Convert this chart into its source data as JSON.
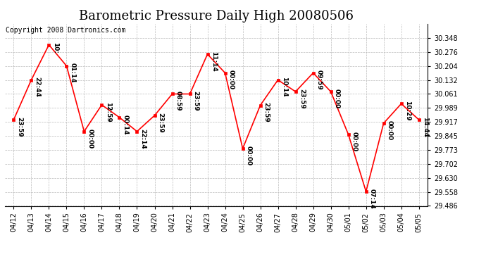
{
  "title": "Barometric Pressure Daily High 20080506",
  "copyright": "Copyright 2008 Dartronics.com",
  "x_labels": [
    "04/12",
    "04/13",
    "04/14",
    "04/15",
    "04/16",
    "04/17",
    "04/18",
    "04/19",
    "04/20",
    "04/21",
    "04/22",
    "04/23",
    "04/24",
    "04/25",
    "04/26",
    "04/27",
    "04/28",
    "04/29",
    "04/30",
    "05/01",
    "05/02",
    "05/03",
    "05/04",
    "05/05"
  ],
  "y_values": [
    29.928,
    30.132,
    30.312,
    30.204,
    29.868,
    30.004,
    29.94,
    29.868,
    29.95,
    30.06,
    30.06,
    30.264,
    30.168,
    29.78,
    30.002,
    30.132,
    30.072,
    30.168,
    30.072,
    29.852,
    29.56,
    29.91,
    30.01,
    29.928
  ],
  "point_labels": [
    "23:59",
    "22:44",
    "10:",
    "01:14",
    "00:00",
    "12:59",
    "00:14",
    "22:14",
    "23:59",
    "08:59",
    "23:59",
    "11:14",
    "00:00",
    "00:00",
    "23:59",
    "10:14",
    "23:59",
    "09:59",
    "00:00",
    "00:00",
    "07:14",
    "00:00",
    "10:29",
    "14:44"
  ],
  "ylim_min": 29.486,
  "ylim_max": 30.42,
  "yticks": [
    29.486,
    29.558,
    29.63,
    29.702,
    29.773,
    29.845,
    29.917,
    29.989,
    30.061,
    30.132,
    30.204,
    30.276,
    30.348
  ],
  "line_color": "red",
  "marker_color": "red",
  "marker_face": "red",
  "bg_color": "white",
  "grid_color": "#bbbbbb",
  "title_fontsize": 13,
  "tick_fontsize": 7,
  "point_label_fontsize": 6.5,
  "copyright_fontsize": 7
}
